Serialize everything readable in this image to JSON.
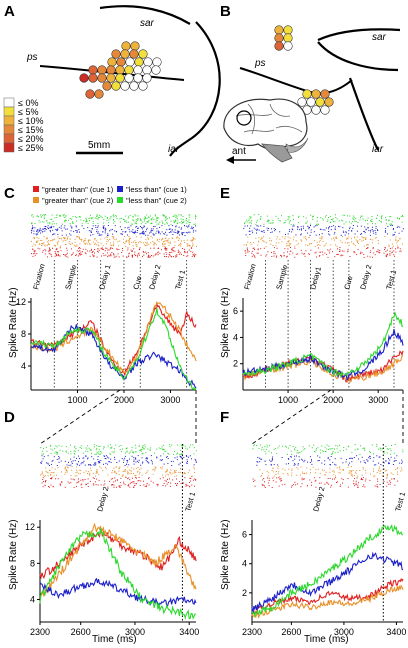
{
  "panels": {
    "a": "A",
    "b": "B",
    "c": "C",
    "d": "D",
    "e": "E",
    "f": "F"
  },
  "anat": {
    "a_sar": "sar",
    "a_ps": "ps",
    "a_iar": "iar",
    "b_sar": "sar",
    "b_ps": "ps",
    "b_iar": "iar",
    "scale_label": "5mm",
    "ant_label": "ant"
  },
  "colorbar": {
    "labels": [
      "≤  0%",
      "≤  5%",
      "≤ 10%",
      "≤ 15%",
      "≤ 20%",
      "≤ 25%"
    ],
    "colors": [
      "#ffffff",
      "#f3df3c",
      "#efb33c",
      "#e5883a",
      "#de6336",
      "#cc2c26"
    ]
  },
  "legend": {
    "gt_cue1": "\"greater than\" (cue 1)",
    "gt_cue2": "\"greater than\" (cue 2)",
    "lt_cue1": "\"less than\" (cue 1)",
    "lt_cue2": "\"less than\" (cue 2)"
  },
  "colors": {
    "gt1": "#e02020",
    "gt2": "#e8902a",
    "lt1": "#1c20c8",
    "lt2": "#2bd82b"
  },
  "epochs_c": [
    "Fixation",
    "Sample",
    "Delay 1",
    "Cue",
    "Delay 2",
    "Test 1"
  ],
  "epochs_e": [
    "Fixation",
    "Sample",
    "Delay1",
    "Cue",
    "Delay 2",
    "Test 1"
  ],
  "epochs_d": [
    "Delay 2",
    "Test 1"
  ],
  "epochs_f": [
    "Delay 2",
    "Test 1"
  ],
  "axes": {
    "ylabel": "Spike Rate (Hz)",
    "xlabel": "Time (ms)",
    "c_xticks": [
      "1000",
      "2000",
      "3000"
    ],
    "c_yticks": [
      "4",
      "8",
      "12"
    ],
    "e_xticks": [
      "1000",
      "2000",
      "3000"
    ],
    "e_yticks": [
      "2",
      "4",
      "6"
    ],
    "d_xticks": [
      "2300",
      "2600",
      "3000",
      "3400"
    ],
    "d_yticks": [
      "4",
      "8",
      "12"
    ],
    "f_xticks": [
      "2300",
      "2600",
      "3000",
      "3400"
    ],
    "f_yticks": [
      "2",
      "4",
      "6"
    ]
  }
}
